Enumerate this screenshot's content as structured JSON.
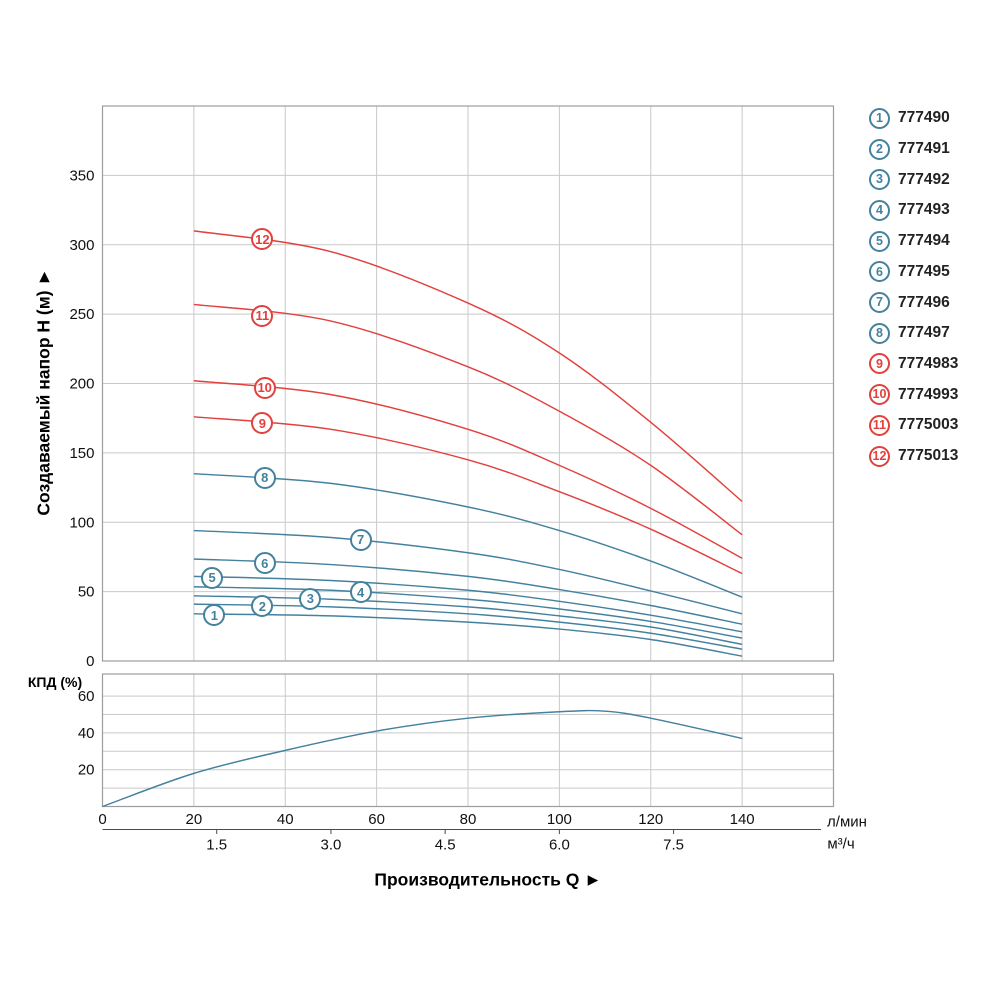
{
  "colors": {
    "teal": "#44819e",
    "red": "#e2403c",
    "grid": "#c9c9c9",
    "plot_border": "#9c9c9c",
    "axis_line": "#4a4a4a",
    "tick_text": "#111111",
    "model_text": "#222222"
  },
  "chart_data": [
    {
      "type": "line",
      "title": "",
      "ylabel": "Создаваемый напор Н (м) ►",
      "xlabel": "Производительность Q ►",
      "x_unit_primary": "л/мин",
      "x_unit_secondary": "м³/ч",
      "xlim": [
        0,
        160
      ],
      "ylim": [
        0,
        400
      ],
      "grid": true,
      "legend_position": "right-outside",
      "y_ticks": [
        0,
        50,
        100,
        150,
        200,
        250,
        300,
        350
      ],
      "x_ticks": [
        0,
        20,
        40,
        60,
        80,
        100,
        120,
        140
      ],
      "x_secondary_ticks": [
        {
          "q": 25,
          "label": "1.5"
        },
        {
          "q": 50,
          "label": "3.0"
        },
        {
          "q": 75,
          "label": "4.5"
        },
        {
          "q": 100,
          "label": "6.0"
        },
        {
          "q": 125,
          "label": "7.5"
        }
      ],
      "series": [
        {
          "num": "1",
          "model": "777490",
          "color": "teal",
          "badge_at": [
            24.5,
            33
          ],
          "points": [
            [
              20,
              34
            ],
            [
              50,
              32.5
            ],
            [
              80,
              28
            ],
            [
              100,
              23
            ],
            [
              120,
              15.5
            ],
            [
              140,
              3.5
            ]
          ]
        },
        {
          "num": "2",
          "model": "777491",
          "color": "teal",
          "badge_at": [
            35,
            39.5
          ],
          "points": [
            [
              20,
              41
            ],
            [
              50,
              39
            ],
            [
              80,
              34
            ],
            [
              100,
              28
            ],
            [
              120,
              20
            ],
            [
              140,
              8.5
            ]
          ]
        },
        {
          "num": "3",
          "model": "777492",
          "color": "teal",
          "badge_at": [
            45.5,
            45
          ],
          "points": [
            [
              20,
              47
            ],
            [
              50,
              44.5
            ],
            [
              80,
              39
            ],
            [
              100,
              32.5
            ],
            [
              120,
              24.5
            ],
            [
              140,
              12
            ]
          ]
        },
        {
          "num": "4",
          "model": "777493",
          "color": "teal",
          "badge_at": [
            56.5,
            49.5
          ],
          "points": [
            [
              20,
              53.5
            ],
            [
              50,
              51
            ],
            [
              80,
              44.5
            ],
            [
              100,
              37.5
            ],
            [
              120,
              28.5
            ],
            [
              140,
              16.5
            ]
          ]
        },
        {
          "num": "5",
          "model": "777494",
          "color": "teal",
          "badge_at": [
            24,
            60
          ],
          "points": [
            [
              20,
              61
            ],
            [
              50,
              58
            ],
            [
              80,
              51
            ],
            [
              100,
              43
            ],
            [
              120,
              33
            ],
            [
              140,
              21
            ]
          ]
        },
        {
          "num": "6",
          "model": "777495",
          "color": "teal",
          "badge_at": [
            35.5,
            70.5
          ],
          "points": [
            [
              20,
              73.5
            ],
            [
              50,
              69.5
            ],
            [
              80,
              61
            ],
            [
              100,
              51.5
            ],
            [
              120,
              40
            ],
            [
              140,
              26.5
            ]
          ]
        },
        {
          "num": "7",
          "model": "777496",
          "color": "teal",
          "badge_at": [
            56.5,
            87.5
          ],
          "points": [
            [
              20,
              94
            ],
            [
              50,
              89
            ],
            [
              80,
              78
            ],
            [
              100,
              66
            ],
            [
              120,
              50.5
            ],
            [
              140,
              34
            ]
          ]
        },
        {
          "num": "8",
          "model": "777497",
          "color": "teal",
          "badge_at": [
            35.5,
            132
          ],
          "points": [
            [
              20,
              135
            ],
            [
              50,
              128
            ],
            [
              80,
              111
            ],
            [
              100,
              94
            ],
            [
              120,
              72
            ],
            [
              140,
              46
            ]
          ]
        },
        {
          "num": "9",
          "model": "7774983",
          "color": "red",
          "badge_at": [
            35,
            171.5
          ],
          "points": [
            [
              20,
              176
            ],
            [
              50,
              167
            ],
            [
              80,
              145
            ],
            [
              100,
              122
            ],
            [
              120,
              95
            ],
            [
              140,
              63
            ]
          ]
        },
        {
          "num": "10",
          "model": "7774993",
          "color": "red",
          "badge_at": [
            35.5,
            197
          ],
          "points": [
            [
              20,
              202
            ],
            [
              50,
              192
            ],
            [
              80,
              167
            ],
            [
              100,
              141
            ],
            [
              120,
              110
            ],
            [
              140,
              74
            ]
          ]
        },
        {
          "num": "11",
          "model": "7775003",
          "color": "red",
          "badge_at": [
            35,
            249
          ],
          "points": [
            [
              20,
              257
            ],
            [
              50,
              245
            ],
            [
              80,
              212
            ],
            [
              100,
              180
            ],
            [
              120,
              141
            ],
            [
              140,
              91
            ]
          ]
        },
        {
          "num": "12",
          "model": "7775013",
          "color": "red",
          "badge_at": [
            35,
            304
          ],
          "points": [
            [
              20,
              310
            ],
            [
              50,
              295
            ],
            [
              80,
              258
            ],
            [
              100,
              222
            ],
            [
              120,
              172
            ],
            [
              140,
              115
            ]
          ]
        }
      ]
    },
    {
      "type": "line",
      "title": "КПД (%)",
      "ylim": [
        0,
        72
      ],
      "y_ticks": [
        20,
        40,
        60
      ],
      "grid_step_y": 10,
      "grid": true,
      "series": [
        {
          "name": "КПД",
          "color": "teal",
          "points": [
            [
              0,
              0
            ],
            [
              20,
              18
            ],
            [
              40,
              30.5
            ],
            [
              60,
              41
            ],
            [
              80,
              48
            ],
            [
              100,
              51.5
            ],
            [
              110,
              51.8
            ],
            [
              120,
              48
            ],
            [
              140,
              37
            ]
          ]
        }
      ]
    }
  ]
}
